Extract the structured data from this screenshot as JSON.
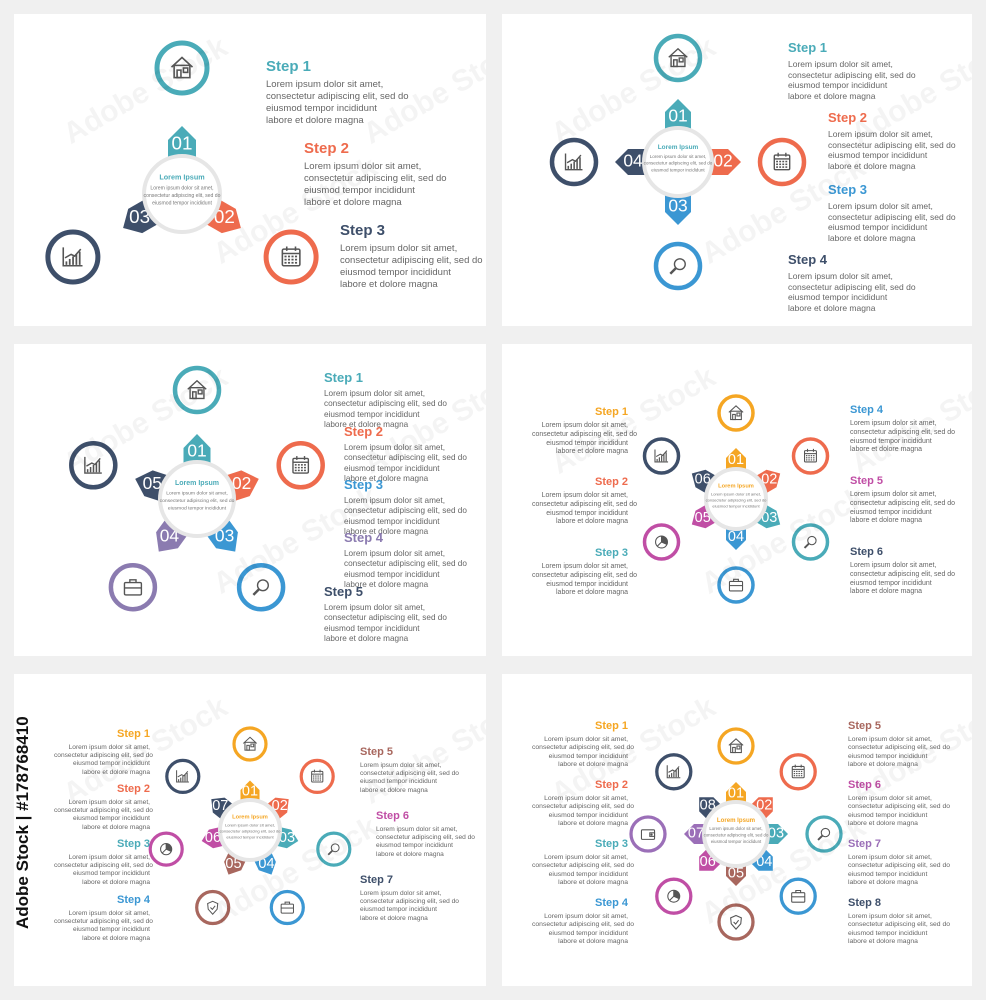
{
  "stock_id": "Adobe Stock | #178768410",
  "watermark": "Adobe Stock",
  "center_title": "Lorem Ipsum",
  "center_text": [
    "Lorem ipsum dolor sit amet,",
    "consectetur adipiscing elit, sed do",
    "eiusmod tempor incididunt"
  ],
  "step_text": [
    "Lorem ipsum dolor sit amet,",
    "consectetur adipiscing elit, sed do",
    "eiusmod tempor incididunt",
    "labore et dolore magna"
  ],
  "colors": {
    "teal": "#4aabb8",
    "coral": "#ee6b4d",
    "navy": "#3e4f6a",
    "blue": "#3b97d3",
    "purple": "#8b7bb0",
    "orange": "#f5a623",
    "magenta": "#c04ea5",
    "brown": "#a8675e",
    "lavender": "#9b6fb8"
  },
  "panels": [
    {
      "id": "three-steps",
      "petals": [
        {
          "number": "01",
          "color": "#4aabb8",
          "icon": "house-icon"
        },
        {
          "number": "02",
          "color": "#ee6b4d",
          "icon": "calendar-icon"
        },
        {
          "number": "03",
          "color": "#3e4f6a",
          "icon": "chart-icon"
        }
      ],
      "steps": [
        {
          "title": "Step 1",
          "color": "#4aabb8"
        },
        {
          "title": "Step 2",
          "color": "#ee6b4d"
        },
        {
          "title": "Step 3",
          "color": "#3e4f6a"
        }
      ]
    },
    {
      "id": "four-steps",
      "petals": [
        {
          "number": "01",
          "color": "#4aabb8",
          "icon": "house-icon"
        },
        {
          "number": "02",
          "color": "#ee6b4d",
          "icon": "calendar-icon"
        },
        {
          "number": "03",
          "color": "#3b97d3",
          "icon": "magnifier-icon"
        },
        {
          "number": "04",
          "color": "#3e4f6a",
          "icon": "chart-icon"
        }
      ],
      "steps": [
        {
          "title": "Step 1",
          "color": "#4aabb8"
        },
        {
          "title": "Step 2",
          "color": "#ee6b4d"
        },
        {
          "title": "Step 3",
          "color": "#3b97d3"
        },
        {
          "title": "Step 4",
          "color": "#3e4f6a"
        }
      ]
    },
    {
      "id": "five-steps",
      "petals": [
        {
          "number": "01",
          "color": "#4aabb8",
          "icon": "house-icon"
        },
        {
          "number": "02",
          "color": "#ee6b4d",
          "icon": "calendar-icon"
        },
        {
          "number": "03",
          "color": "#3b97d3",
          "icon": "magnifier-icon"
        },
        {
          "number": "04",
          "color": "#8b7bb0",
          "icon": "briefcase-icon"
        },
        {
          "number": "05",
          "color": "#3e4f6a",
          "icon": "chart-icon"
        }
      ],
      "steps": [
        {
          "title": "Step 1",
          "color": "#4aabb8"
        },
        {
          "title": "Step 2",
          "color": "#ee6b4d"
        },
        {
          "title": "Step 3",
          "color": "#3b97d3"
        },
        {
          "title": "Step 4",
          "color": "#8b7bb0"
        },
        {
          "title": "Step 5",
          "color": "#3e4f6a"
        }
      ]
    },
    {
      "id": "six-steps",
      "petals": [
        {
          "number": "01",
          "color": "#f5a623",
          "icon": "house-icon"
        },
        {
          "number": "02",
          "color": "#ee6b4d",
          "icon": "calendar-icon"
        },
        {
          "number": "03",
          "color": "#4aabb8",
          "icon": "magnifier-icon"
        },
        {
          "number": "04",
          "color": "#3b97d3",
          "icon": "briefcase-icon"
        },
        {
          "number": "05",
          "color": "#c04ea5",
          "icon": "pie-chart-icon"
        },
        {
          "number": "06",
          "color": "#3e4f6a",
          "icon": "chart-icon"
        }
      ],
      "steps": [
        {
          "title": "Step 1",
          "color": "#f5a623"
        },
        {
          "title": "Step 2",
          "color": "#ee6b4d"
        },
        {
          "title": "Step 3",
          "color": "#4aabb8"
        },
        {
          "title": "Step 4",
          "color": "#3b97d3"
        },
        {
          "title": "Step 5",
          "color": "#c04ea5"
        },
        {
          "title": "Step 6",
          "color": "#3e4f6a"
        }
      ]
    },
    {
      "id": "seven-steps",
      "petals": [
        {
          "number": "01",
          "color": "#f5a623",
          "icon": "house-icon"
        },
        {
          "number": "02",
          "color": "#ee6b4d",
          "icon": "calendar-icon"
        },
        {
          "number": "03",
          "color": "#4aabb8",
          "icon": "magnifier-icon"
        },
        {
          "number": "04",
          "color": "#3b97d3",
          "icon": "briefcase-icon"
        },
        {
          "number": "05",
          "color": "#a8675e",
          "icon": "shield-icon"
        },
        {
          "number": "06",
          "color": "#c04ea5",
          "icon": "pie-chart-icon"
        },
        {
          "number": "07",
          "color": "#3e4f6a",
          "icon": "chart-icon"
        }
      ],
      "steps": [
        {
          "title": "Step 1",
          "color": "#f5a623"
        },
        {
          "title": "Step 2",
          "color": "#ee6b4d"
        },
        {
          "title": "Step 3",
          "color": "#4aabb8"
        },
        {
          "title": "Step 4",
          "color": "#3b97d3"
        },
        {
          "title": "Step 5",
          "color": "#a8675e"
        },
        {
          "title": "Step 6",
          "color": "#c04ea5"
        },
        {
          "title": "Step 7",
          "color": "#3e4f6a"
        }
      ]
    },
    {
      "id": "eight-steps",
      "petals": [
        {
          "number": "01",
          "color": "#f5a623",
          "icon": "house-icon"
        },
        {
          "number": "02",
          "color": "#ee6b4d",
          "icon": "calendar-icon"
        },
        {
          "number": "03",
          "color": "#4aabb8",
          "icon": "magnifier-icon"
        },
        {
          "number": "04",
          "color": "#3b97d3",
          "icon": "briefcase-icon"
        },
        {
          "number": "05",
          "color": "#a8675e",
          "icon": "shield-icon"
        },
        {
          "number": "06",
          "color": "#c04ea5",
          "icon": "pie-chart-icon"
        },
        {
          "number": "07",
          "color": "#9b6fb8",
          "icon": "wallet-icon"
        },
        {
          "number": "08",
          "color": "#3e4f6a",
          "icon": "chart-icon"
        }
      ],
      "steps": [
        {
          "title": "Step 1",
          "color": "#f5a623"
        },
        {
          "title": "Step 2",
          "color": "#ee6b4d"
        },
        {
          "title": "Step 3",
          "color": "#4aabb8"
        },
        {
          "title": "Step 4",
          "color": "#3b97d3"
        },
        {
          "title": "Step 5",
          "color": "#a8675e"
        },
        {
          "title": "Step 6",
          "color": "#c04ea5"
        },
        {
          "title": "Step 7",
          "color": "#9b6fb8"
        },
        {
          "title": "Step 8",
          "color": "#3e4f6a"
        }
      ]
    }
  ]
}
